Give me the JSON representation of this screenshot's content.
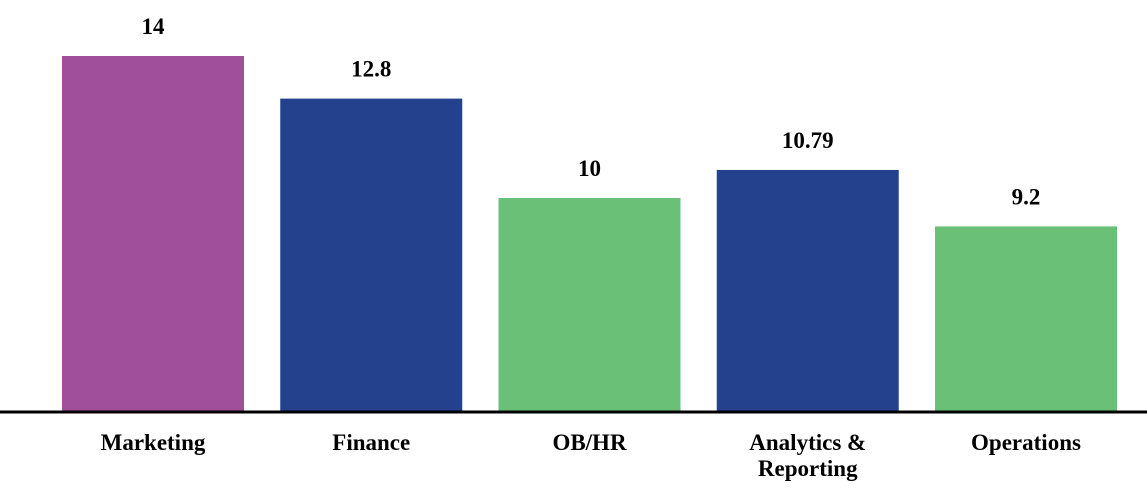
{
  "chart_data": {
    "type": "bar",
    "categories": [
      "Marketing",
      "Finance",
      "OB/HR",
      "Analytics & Reporting",
      "Operations"
    ],
    "values": [
      14,
      12.8,
      10,
      10.79,
      9.2
    ],
    "colors": [
      "#a04f9b",
      "#24418e",
      "#6ac077",
      "#24418e",
      "#6ac077"
    ],
    "ylim": [
      4,
      14
    ]
  }
}
